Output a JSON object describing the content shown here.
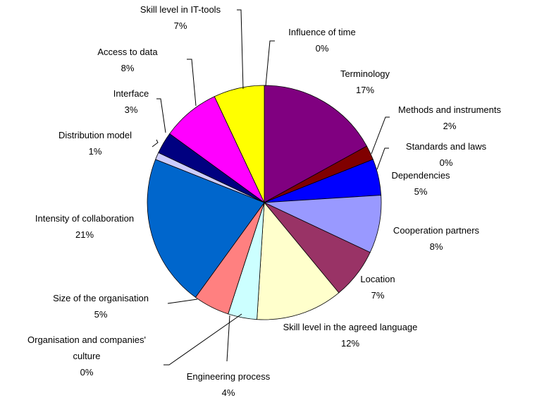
{
  "chart_data": {
    "type": "pie",
    "categories": [
      "Influence of time",
      "Terminology",
      "Methods and instruments",
      "Standards and laws",
      "Dependencies",
      "Cooperation partners",
      "Location",
      "Skill level in the agreed language",
      "Engineering process",
      "Organisation and companies' culture",
      "Size of the organisation",
      "Intensity of collaboration",
      "Distribution model",
      "Interface",
      "Access to data",
      "Skill level in IT-tools"
    ],
    "values": [
      0,
      17,
      2,
      0,
      5,
      8,
      7,
      12,
      4,
      0,
      5,
      21,
      1,
      3,
      8,
      7
    ],
    "value_labels": [
      "0%",
      "17%",
      "2%",
      "0%",
      "5%",
      "8%",
      "7%",
      "12%",
      "4%",
      "0%",
      "5%",
      "21%",
      "1%",
      "3%",
      "8%",
      "7%"
    ],
    "colors": [
      "#00ffff",
      "#800080",
      "#800000",
      "#008080",
      "#0000ff",
      "#9999ff",
      "#993366",
      "#ffffcc",
      "#ccffff",
      "#660066",
      "#ff8080",
      "#0066cc",
      "#ccccff",
      "#000080",
      "#ff00ff",
      "#ffff00"
    ]
  }
}
